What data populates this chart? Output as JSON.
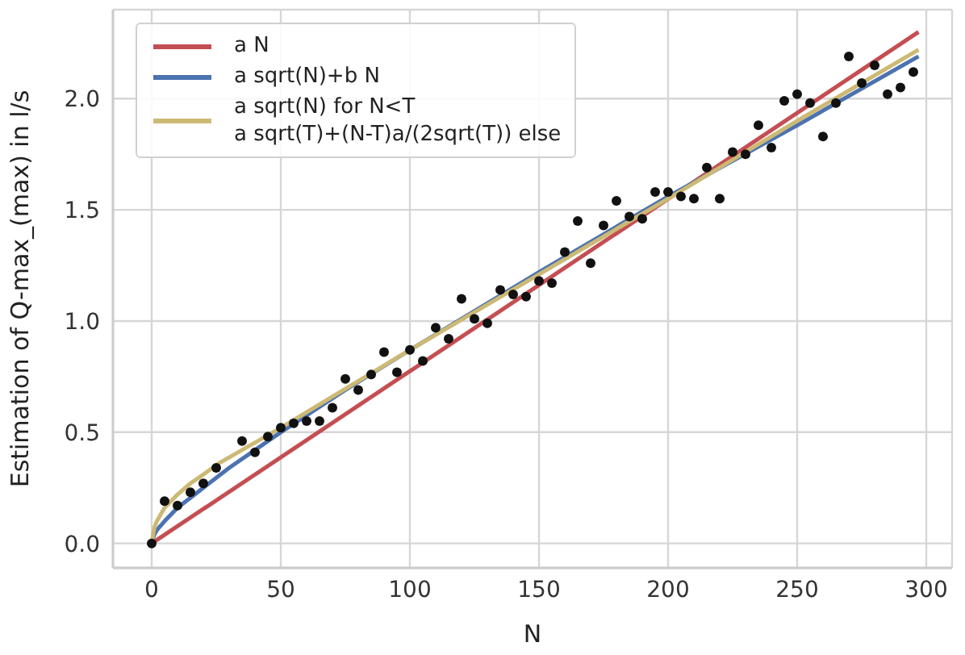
{
  "chart_data": {
    "type": "scatter",
    "xlabel": "N",
    "ylabel": "Estimation of Q-max_(max) in l/s",
    "xlim": [
      -15,
      310
    ],
    "ylim": [
      -0.11,
      2.4
    ],
    "xticks": [
      0,
      50,
      100,
      150,
      200,
      250,
      300
    ],
    "yticks": [
      {
        "value": 0,
        "label": "0.0"
      },
      0.5,
      {
        "value": 1,
        "label": "1.0"
      },
      1.5,
      {
        "value": 2,
        "label": "2.0"
      }
    ],
    "grid": true,
    "legend": "top left",
    "series": [
      {
        "color": "#111111",
        "marker": "circle",
        "x": [
          0,
          5,
          10,
          15,
          20,
          25,
          35,
          40,
          45,
          50,
          55,
          60,
          65,
          70,
          75,
          80,
          85,
          90,
          95,
          100,
          105,
          110,
          115,
          120,
          125,
          130,
          135,
          140,
          145,
          150,
          155,
          160,
          165,
          170,
          175,
          180,
          185,
          190,
          195,
          200,
          205,
          210,
          215,
          220,
          225,
          230,
          235,
          240,
          245,
          250,
          255,
          260,
          265,
          270,
          275,
          280,
          285,
          290,
          295
        ],
        "values": [
          0,
          0.19,
          0.17,
          0.23,
          0.27,
          0.34,
          0.46,
          0.41,
          0.48,
          0.52,
          0.54,
          0.55,
          0.55,
          0.61,
          0.74,
          0.69,
          0.76,
          0.86,
          0.77,
          0.87,
          0.82,
          0.97,
          0.92,
          1.1,
          1.01,
          0.99,
          1.14,
          1.12,
          1.11,
          1.18,
          1.17,
          1.31,
          1.45,
          1.26,
          1.43,
          1.54,
          1.47,
          1.46,
          1.58,
          1.58,
          1.56,
          1.55,
          1.69,
          1.55,
          1.76,
          1.75,
          1.88,
          1.78,
          1.99,
          2.02,
          1.98,
          1.83,
          1.98,
          2.19,
          2.07,
          2.15,
          2.02,
          2.05,
          2.12
        ]
      },
      {
        "type": "line",
        "name": "a N",
        "color": "#c44e52",
        "marker": "none",
        "x": [
          0,
          297
        ],
        "values": [
          0,
          2.3
        ]
      },
      {
        "type": "line",
        "name": "a sqrt(N)+b N",
        "color": "#4c72b0",
        "marker": "none",
        "x": [
          0,
          1,
          2,
          5,
          10,
          20,
          30,
          50,
          75,
          100,
          150,
          200,
          250,
          297
        ],
        "values": [
          0,
          0.04,
          0.06,
          0.1,
          0.16,
          0.25,
          0.34,
          0.5,
          0.69,
          0.87,
          1.22,
          1.56,
          1.88,
          2.19
        ]
      },
      {
        "type": "line",
        "name": "a sqrt(N) for N<T\na sqrt(T)+(N-T)a/(2sqrt(T)) else",
        "color": "#ccb974",
        "marker": "none",
        "x": [
          0,
          1,
          2,
          5,
          10,
          15,
          20,
          26,
          50,
          100,
          150,
          200,
          250,
          297
        ],
        "values": [
          0,
          0.07,
          0.1,
          0.16,
          0.22,
          0.27,
          0.31,
          0.36,
          0.52,
          0.87,
          1.21,
          1.55,
          1.9,
          2.22
        ]
      }
    ]
  }
}
